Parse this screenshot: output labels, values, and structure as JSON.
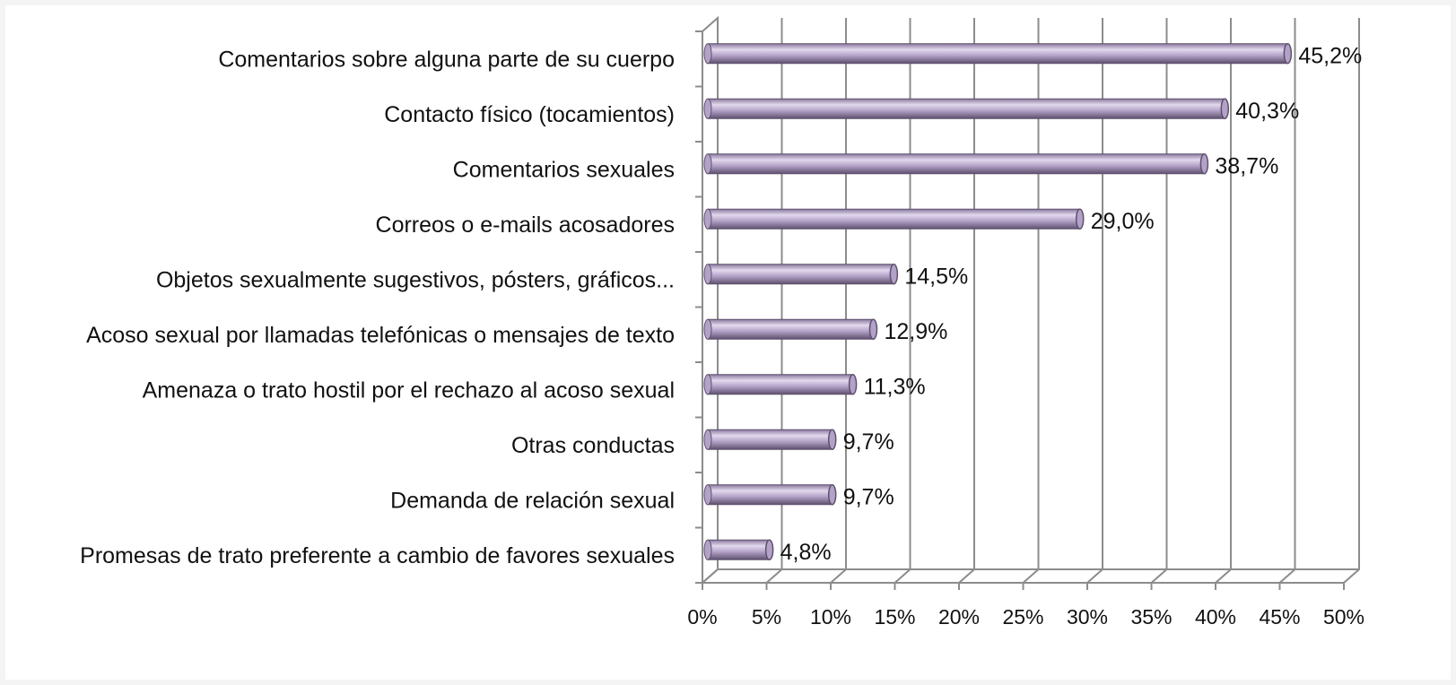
{
  "chart_data": {
    "type": "bar",
    "orientation": "horizontal",
    "categories": [
      "Comentarios sobre alguna parte de su cuerpo",
      "Contacto físico (tocamientos)",
      "Comentarios sexuales",
      "Correos o e-mails acosadores",
      "Objetos sexualmente sugestivos, pósters, gráficos...",
      "Acoso sexual por llamadas telefónicas o mensajes de texto",
      "Amenaza o trato hostil por el rechazo al acoso sexual",
      "Otras conductas",
      "Demanda de relación sexual",
      "Promesas de trato preferente a cambio de favores sexuales"
    ],
    "values": [
      45.2,
      40.3,
      38.7,
      29.0,
      14.5,
      12.9,
      11.3,
      9.7,
      9.7,
      4.8
    ],
    "value_labels": [
      "45,2%",
      "40,3%",
      "38,7%",
      "29,0%",
      "14,5%",
      "12,9%",
      "11,3%",
      "9,7%",
      "9,7%",
      "4,8%"
    ],
    "color": "#b3a2c7",
    "xlim": [
      0,
      50
    ],
    "xticks": [
      {
        "value": 0,
        "label": "0%"
      },
      {
        "value": 5,
        "label": "5%"
      },
      {
        "value": 10,
        "label": "10%"
      },
      {
        "value": 15,
        "label": "15%"
      },
      {
        "value": 20,
        "label": "20%"
      },
      {
        "value": 25,
        "label": "25%"
      },
      {
        "value": 30,
        "label": "30%"
      },
      {
        "value": 35,
        "label": "35%"
      },
      {
        "value": 40,
        "label": "40%"
      },
      {
        "value": 45,
        "label": "45%"
      },
      {
        "value": 50,
        "label": "50%"
      }
    ],
    "grid": true
  }
}
